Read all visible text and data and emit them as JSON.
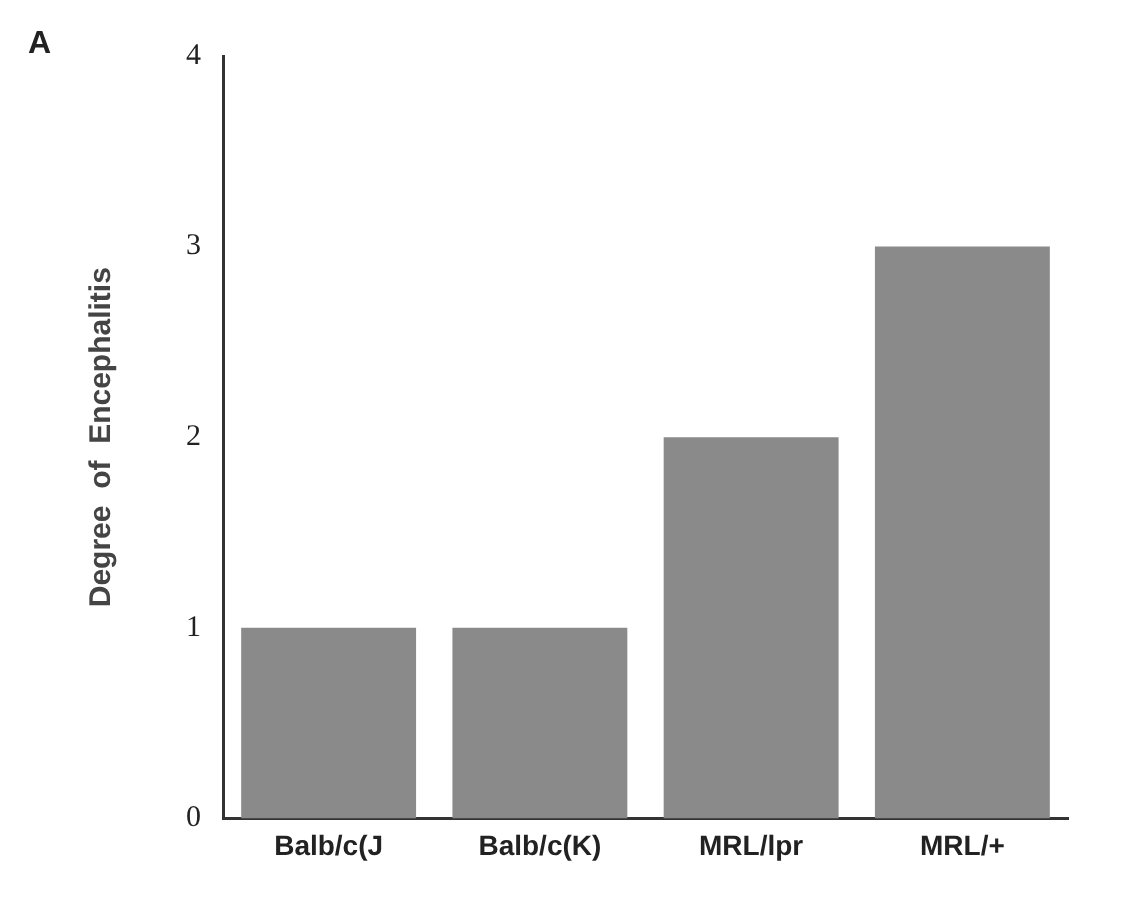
{
  "chart_data": {
    "type": "bar",
    "ylabel": "Degree  of  Encephalitis",
    "annotations": [
      "A"
    ],
    "categories": [
      "Balb/c(J",
      "Balb/c(K)",
      "MRL/lpr",
      "MRL/+"
    ],
    "values": [
      1,
      1,
      2,
      3
    ],
    "color": "#8a8a8a",
    "ylim": [
      0,
      4
    ],
    "yticks": [
      0,
      1,
      2,
      3,
      4
    ],
    "grid": false,
    "legend": false
  }
}
